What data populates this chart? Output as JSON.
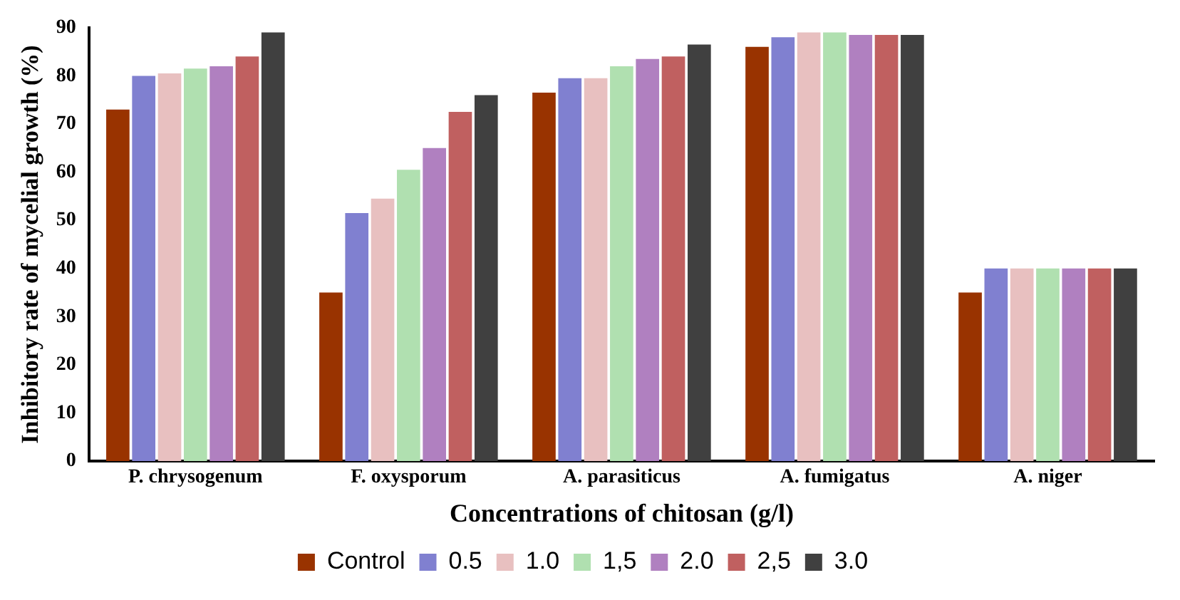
{
  "chart_data": {
    "type": "bar",
    "xlabel": "Concentrations of chitosan (g/l)",
    "ylabel": "Inhibitory rate of mycelial growth (%)",
    "categories": [
      "P. chrysogenum",
      "F. oxysporum",
      "A. parasiticus",
      "A. fumigatus",
      "A. niger"
    ],
    "series": [
      {
        "name": "Control",
        "color": "#993300",
        "values": [
          73,
          35,
          76.5,
          86,
          35
        ]
      },
      {
        "name": "0.5",
        "color": "#8080d0",
        "values": [
          80,
          51.5,
          79.5,
          88,
          40
        ]
      },
      {
        "name": "1.0",
        "color": "#e8c0c0",
        "values": [
          80.5,
          54.5,
          79.5,
          89,
          40
        ]
      },
      {
        "name": "1,5",
        "color": "#b0e0b0",
        "values": [
          81.5,
          60.5,
          82,
          89,
          40
        ]
      },
      {
        "name": "2.0",
        "color": "#b080c0",
        "values": [
          82,
          65,
          83.5,
          88.5,
          40
        ]
      },
      {
        "name": "2,5",
        "color": "#c06060",
        "values": [
          84,
          72.5,
          84,
          88.5,
          40
        ]
      },
      {
        "name": "3.0",
        "color": "#404040",
        "values": [
          89,
          76,
          86.5,
          88.5,
          40
        ]
      }
    ],
    "ylim": [
      0,
      90
    ],
    "yticks": [
      0,
      10,
      20,
      30,
      40,
      50,
      60,
      70,
      80,
      90
    ],
    "grid": false,
    "legend": "bottom"
  }
}
